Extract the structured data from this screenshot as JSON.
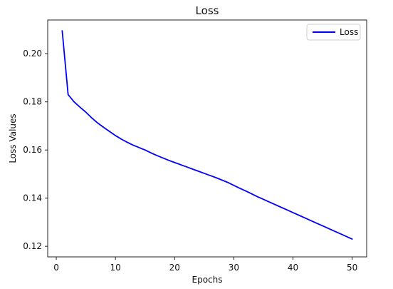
{
  "chart_data": {
    "type": "line",
    "title": "Loss",
    "xlabel": "Epochs",
    "ylabel": "Loss Values",
    "xlim": [
      -1.45,
      52.45
    ],
    "ylim": [
      0.1156,
      0.214
    ],
    "x_ticks": [
      0,
      10,
      20,
      30,
      40,
      50
    ],
    "y_ticks": [
      0.12,
      0.14,
      0.16,
      0.18,
      0.2
    ],
    "y_tick_labels": [
      "0.12",
      "0.14",
      "0.16",
      "0.18",
      "0.20"
    ],
    "legend_position": "top-right",
    "grid": false,
    "series": [
      {
        "name": "Loss",
        "color": "#0000ff",
        "x": [
          1,
          2,
          3,
          4,
          5,
          6,
          7,
          8,
          9,
          10,
          11,
          12,
          13,
          14,
          15,
          16,
          17,
          18,
          19,
          20,
          21,
          22,
          23,
          24,
          25,
          26,
          27,
          28,
          29,
          30,
          31,
          32,
          33,
          34,
          35,
          36,
          37,
          38,
          39,
          40,
          41,
          42,
          43,
          44,
          45,
          46,
          47,
          48,
          49,
          50
        ],
        "values": [
          0.2095,
          0.183,
          0.18,
          0.1778,
          0.1757,
          0.1733,
          0.1712,
          0.1694,
          0.1677,
          0.166,
          0.1645,
          0.1632,
          0.162,
          0.161,
          0.16,
          0.1588,
          0.1577,
          0.1567,
          0.1557,
          0.1548,
          0.1539,
          0.153,
          0.1521,
          0.1512,
          0.1503,
          0.1494,
          0.1485,
          0.1475,
          0.1465,
          0.1453,
          0.1441,
          0.143,
          0.1418,
          0.1406,
          0.1395,
          0.1384,
          0.1373,
          0.1362,
          0.1351,
          0.134,
          0.1329,
          0.1318,
          0.1307,
          0.1296,
          0.1285,
          0.1274,
          0.1263,
          0.1252,
          0.1241,
          0.123
        ]
      }
    ]
  }
}
